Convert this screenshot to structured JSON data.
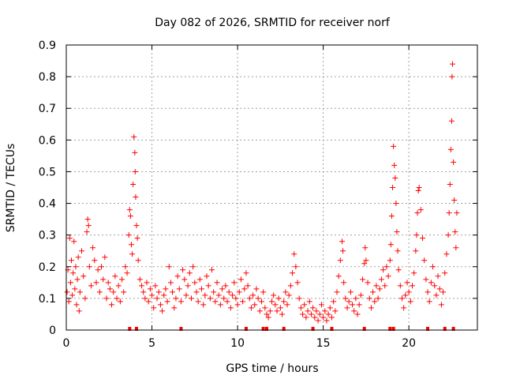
{
  "chart_data": {
    "type": "scatter",
    "title": "Day 082 of 2026, SRMTID for receiver norf",
    "xlabel": "GPS time / hours",
    "ylabel": "SRMTID / TECUs",
    "xlim": [
      0,
      24
    ],
    "ylim": [
      0,
      0.9
    ],
    "xticks": [
      0,
      5,
      10,
      15,
      20
    ],
    "yticks": [
      0,
      0.1,
      0.2,
      0.3,
      0.4,
      0.5,
      0.6,
      0.7,
      0.8,
      0.9
    ],
    "xtick_labels": [
      "0",
      "5",
      "10",
      "15",
      "20"
    ],
    "ytick_labels": [
      "0",
      "0.1",
      "0.2",
      "0.3",
      "0.4",
      "0.5",
      "0.6",
      "0.7",
      "0.8",
      "0.9"
    ],
    "grid": true,
    "marker": "+",
    "color": "#ff0000",
    "series": [
      {
        "name": "SRMTID",
        "points": [
          [
            0.05,
            0.12
          ],
          [
            0.1,
            0.19
          ],
          [
            0.15,
            0.09
          ],
          [
            0.2,
            0.29
          ],
          [
            0.25,
            0.15
          ],
          [
            0.3,
            0.22
          ],
          [
            0.35,
            0.11
          ],
          [
            0.4,
            0.18
          ],
          [
            0.45,
            0.28
          ],
          [
            0.5,
            0.13
          ],
          [
            0.55,
            0.2
          ],
          [
            0.6,
            0.08
          ],
          [
            0.65,
            0.16
          ],
          [
            0.7,
            0.23
          ],
          [
            0.75,
            0.06
          ],
          [
            0.8,
            0.12
          ],
          [
            0.9,
            0.25
          ],
          [
            1.0,
            0.17
          ],
          [
            1.1,
            0.1
          ],
          [
            1.2,
            0.31
          ],
          [
            1.25,
            0.35
          ],
          [
            1.3,
            0.33
          ],
          [
            1.35,
            0.2
          ],
          [
            1.45,
            0.14
          ],
          [
            1.55,
            0.26
          ],
          [
            1.65,
            0.22
          ],
          [
            1.75,
            0.15
          ],
          [
            1.85,
            0.19
          ],
          [
            1.95,
            0.12
          ],
          [
            2.05,
            0.2
          ],
          [
            2.15,
            0.16
          ],
          [
            2.25,
            0.23
          ],
          [
            2.35,
            0.1
          ],
          [
            2.45,
            0.15
          ],
          [
            2.55,
            0.13
          ],
          [
            2.65,
            0.08
          ],
          [
            2.75,
            0.12
          ],
          [
            2.85,
            0.17
          ],
          [
            2.95,
            0.1
          ],
          [
            3.05,
            0.14
          ],
          [
            3.15,
            0.09
          ],
          [
            3.25,
            0.16
          ],
          [
            3.35,
            0.12
          ],
          [
            3.45,
            0.2
          ],
          [
            3.55,
            0.18
          ],
          [
            3.65,
            0.3
          ],
          [
            3.7,
            0.38
          ],
          [
            3.75,
            0.36
          ],
          [
            3.8,
            0.27
          ],
          [
            3.85,
            0.24
          ],
          [
            3.9,
            0.46
          ],
          [
            3.95,
            0.61
          ],
          [
            4.0,
            0.56
          ],
          [
            4.02,
            0.5
          ],
          [
            4.05,
            0.42
          ],
          [
            4.1,
            0.33
          ],
          [
            4.15,
            0.29
          ],
          [
            4.2,
            0.22
          ],
          [
            4.3,
            0.16
          ],
          [
            4.4,
            0.14
          ],
          [
            4.5,
            0.12
          ],
          [
            4.6,
            0.1
          ],
          [
            4.7,
            0.15
          ],
          [
            4.8,
            0.09
          ],
          [
            4.9,
            0.13
          ],
          [
            5.0,
            0.11
          ],
          [
            5.1,
            0.07
          ],
          [
            5.2,
            0.14
          ],
          [
            5.3,
            0.1
          ],
          [
            5.4,
            0.12
          ],
          [
            5.5,
            0.08
          ],
          [
            5.6,
            0.06
          ],
          [
            5.7,
            0.11
          ],
          [
            5.8,
            0.13
          ],
          [
            5.9,
            0.09
          ],
          [
            6.0,
            0.2
          ],
          [
            6.1,
            0.15
          ],
          [
            6.2,
            0.12
          ],
          [
            6.3,
            0.07
          ],
          [
            6.4,
            0.1
          ],
          [
            6.5,
            0.17
          ],
          [
            6.6,
            0.13
          ],
          [
            6.7,
            0.09
          ],
          [
            6.8,
            0.19
          ],
          [
            6.9,
            0.16
          ],
          [
            7.0,
            0.11
          ],
          [
            7.1,
            0.14
          ],
          [
            7.2,
            0.18
          ],
          [
            7.3,
            0.1
          ],
          [
            7.4,
            0.2
          ],
          [
            7.5,
            0.15
          ],
          [
            7.6,
            0.12
          ],
          [
            7.7,
            0.09
          ],
          [
            7.8,
            0.16
          ],
          [
            7.9,
            0.13
          ],
          [
            8.0,
            0.08
          ],
          [
            8.1,
            0.11
          ],
          [
            8.2,
            0.17
          ],
          [
            8.3,
            0.14
          ],
          [
            8.4,
            0.1
          ],
          [
            8.5,
            0.19
          ],
          [
            8.6,
            0.12
          ],
          [
            8.7,
            0.09
          ],
          [
            8.8,
            0.15
          ],
          [
            8.9,
            0.11
          ],
          [
            9.0,
            0.08
          ],
          [
            9.1,
            0.13
          ],
          [
            9.2,
            0.1
          ],
          [
            9.3,
            0.14
          ],
          [
            9.4,
            0.09
          ],
          [
            9.5,
            0.12
          ],
          [
            9.6,
            0.07
          ],
          [
            9.7,
            0.11
          ],
          [
            9.8,
            0.15
          ],
          [
            9.9,
            0.1
          ],
          [
            10.0,
            0.08
          ],
          [
            10.1,
            0.12
          ],
          [
            10.2,
            0.16
          ],
          [
            10.3,
            0.09
          ],
          [
            10.4,
            0.13
          ],
          [
            10.5,
            0.18
          ],
          [
            10.6,
            0.14
          ],
          [
            10.7,
            0.1
          ],
          [
            10.8,
            0.07
          ],
          [
            10.9,
            0.11
          ],
          [
            11.0,
            0.08
          ],
          [
            11.1,
            0.13
          ],
          [
            11.2,
            0.1
          ],
          [
            11.3,
            0.06
          ],
          [
            11.4,
            0.09
          ],
          [
            11.5,
            0.12
          ],
          [
            11.6,
            0.07
          ],
          [
            11.7,
            0.05
          ],
          [
            11.8,
            0.04
          ],
          [
            11.9,
            0.06
          ],
          [
            12.0,
            0.09
          ],
          [
            12.1,
            0.11
          ],
          [
            12.2,
            0.08
          ],
          [
            12.3,
            0.06
          ],
          [
            12.4,
            0.1
          ],
          [
            12.5,
            0.07
          ],
          [
            12.6,
            0.05
          ],
          [
            12.7,
            0.09
          ],
          [
            12.8,
            0.12
          ],
          [
            12.9,
            0.08
          ],
          [
            13.0,
            0.11
          ],
          [
            13.1,
            0.14
          ],
          [
            13.2,
            0.18
          ],
          [
            13.3,
            0.24
          ],
          [
            13.4,
            0.2
          ],
          [
            13.5,
            0.15
          ],
          [
            13.6,
            0.1
          ],
          [
            13.7,
            0.07
          ],
          [
            13.8,
            0.05
          ],
          [
            13.9,
            0.08
          ],
          [
            14.0,
            0.04
          ],
          [
            14.1,
            0.06
          ],
          [
            14.2,
            0.09
          ],
          [
            14.3,
            0.05
          ],
          [
            14.4,
            0.07
          ],
          [
            14.5,
            0.04
          ],
          [
            14.6,
            0.06
          ],
          [
            14.7,
            0.03
          ],
          [
            14.8,
            0.05
          ],
          [
            14.9,
            0.08
          ],
          [
            15.0,
            0.04
          ],
          [
            15.1,
            0.06
          ],
          [
            15.2,
            0.03
          ],
          [
            15.3,
            0.05
          ],
          [
            15.4,
            0.07
          ],
          [
            15.5,
            0.04
          ],
          [
            15.6,
            0.09
          ],
          [
            15.7,
            0.06
          ],
          [
            15.8,
            0.12
          ],
          [
            15.9,
            0.17
          ],
          [
            16.0,
            0.22
          ],
          [
            16.1,
            0.28
          ],
          [
            16.15,
            0.25
          ],
          [
            16.2,
            0.15
          ],
          [
            16.3,
            0.1
          ],
          [
            16.4,
            0.07
          ],
          [
            16.5,
            0.09
          ],
          [
            16.6,
            0.12
          ],
          [
            16.7,
            0.08
          ],
          [
            16.8,
            0.06
          ],
          [
            16.9,
            0.1
          ],
          [
            17.0,
            0.05
          ],
          [
            17.1,
            0.08
          ],
          [
            17.2,
            0.11
          ],
          [
            17.3,
            0.16
          ],
          [
            17.4,
            0.21
          ],
          [
            17.45,
            0.26
          ],
          [
            17.5,
            0.22
          ],
          [
            17.6,
            0.15
          ],
          [
            17.7,
            0.1
          ],
          [
            17.8,
            0.07
          ],
          [
            17.9,
            0.12
          ],
          [
            18.0,
            0.09
          ],
          [
            18.1,
            0.14
          ],
          [
            18.2,
            0.1
          ],
          [
            18.3,
            0.13
          ],
          [
            18.4,
            0.16
          ],
          [
            18.5,
            0.19
          ],
          [
            18.6,
            0.14
          ],
          [
            18.7,
            0.2
          ],
          [
            18.8,
            0.17
          ],
          [
            18.9,
            0.22
          ],
          [
            18.95,
            0.27
          ],
          [
            19.0,
            0.36
          ],
          [
            19.05,
            0.45
          ],
          [
            19.1,
            0.58
          ],
          [
            19.15,
            0.52
          ],
          [
            19.2,
            0.48
          ],
          [
            19.25,
            0.4
          ],
          [
            19.3,
            0.31
          ],
          [
            19.35,
            0.25
          ],
          [
            19.4,
            0.19
          ],
          [
            19.5,
            0.14
          ],
          [
            19.6,
            0.1
          ],
          [
            19.7,
            0.07
          ],
          [
            19.8,
            0.11
          ],
          [
            19.9,
            0.15
          ],
          [
            20.0,
            0.12
          ],
          [
            20.1,
            0.09
          ],
          [
            20.2,
            0.14
          ],
          [
            20.3,
            0.18
          ],
          [
            20.4,
            0.25
          ],
          [
            20.45,
            0.3
          ],
          [
            20.5,
            0.37
          ],
          [
            20.55,
            0.44
          ],
          [
            20.6,
            0.45
          ],
          [
            20.7,
            0.38
          ],
          [
            20.8,
            0.29
          ],
          [
            20.9,
            0.22
          ],
          [
            21.0,
            0.16
          ],
          [
            21.1,
            0.12
          ],
          [
            21.2,
            0.09
          ],
          [
            21.3,
            0.15
          ],
          [
            21.4,
            0.2
          ],
          [
            21.5,
            0.14
          ],
          [
            21.6,
            0.11
          ],
          [
            21.7,
            0.17
          ],
          [
            21.8,
            0.13
          ],
          [
            21.9,
            0.08
          ],
          [
            22.0,
            0.12
          ],
          [
            22.1,
            0.18
          ],
          [
            22.2,
            0.24
          ],
          [
            22.3,
            0.3
          ],
          [
            22.35,
            0.37
          ],
          [
            22.4,
            0.46
          ],
          [
            22.45,
            0.57
          ],
          [
            22.5,
            0.66
          ],
          [
            22.52,
            0.8
          ],
          [
            22.55,
            0.84
          ],
          [
            22.6,
            0.53
          ],
          [
            22.65,
            0.41
          ],
          [
            22.7,
            0.31
          ],
          [
            22.75,
            0.26
          ],
          [
            22.8,
            0.37
          ]
        ]
      }
    ],
    "baseline_marks_x": [
      3.7,
      4.1,
      6.7,
      10.5,
      11.5,
      11.7,
      12.7,
      14.4,
      15.5,
      17.4,
      18.9,
      19.1,
      21.1,
      22.1,
      22.6
    ]
  }
}
